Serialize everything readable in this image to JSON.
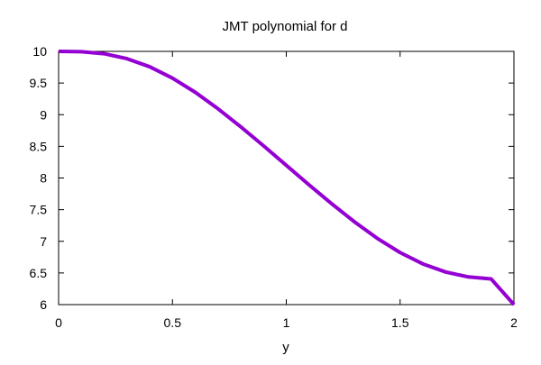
{
  "chart_data": {
    "type": "line",
    "title": "JMT polynomial for d",
    "xlabel": "y",
    "ylabel": "",
    "xlim": [
      0,
      2
    ],
    "ylim": [
      6,
      10
    ],
    "x_ticks": [
      "0",
      "0.5",
      "1",
      "1.5",
      "2"
    ],
    "y_ticks": [
      "6",
      "6.5",
      "7",
      "7.5",
      "8",
      "8.5",
      "9",
      "9.5",
      "10"
    ],
    "grid": false,
    "legend": "none",
    "series": [
      {
        "color": "#9400d3",
        "x": [
          0,
          0.1,
          0.2,
          0.3,
          0.4,
          0.5,
          0.6,
          0.7,
          0.8,
          0.9,
          1.0,
          1.1,
          1.2,
          1.3,
          1.4,
          1.5,
          1.6,
          1.7,
          1.8,
          1.9,
          2.0
        ],
        "y": [
          10,
          9.995,
          9.963,
          9.885,
          9.757,
          9.578,
          9.354,
          9.094,
          8.808,
          8.509,
          8.2,
          7.891,
          7.592,
          7.306,
          7.046,
          6.822,
          6.643,
          6.515,
          6.437,
          6.405,
          6.0
        ]
      }
    ]
  }
}
